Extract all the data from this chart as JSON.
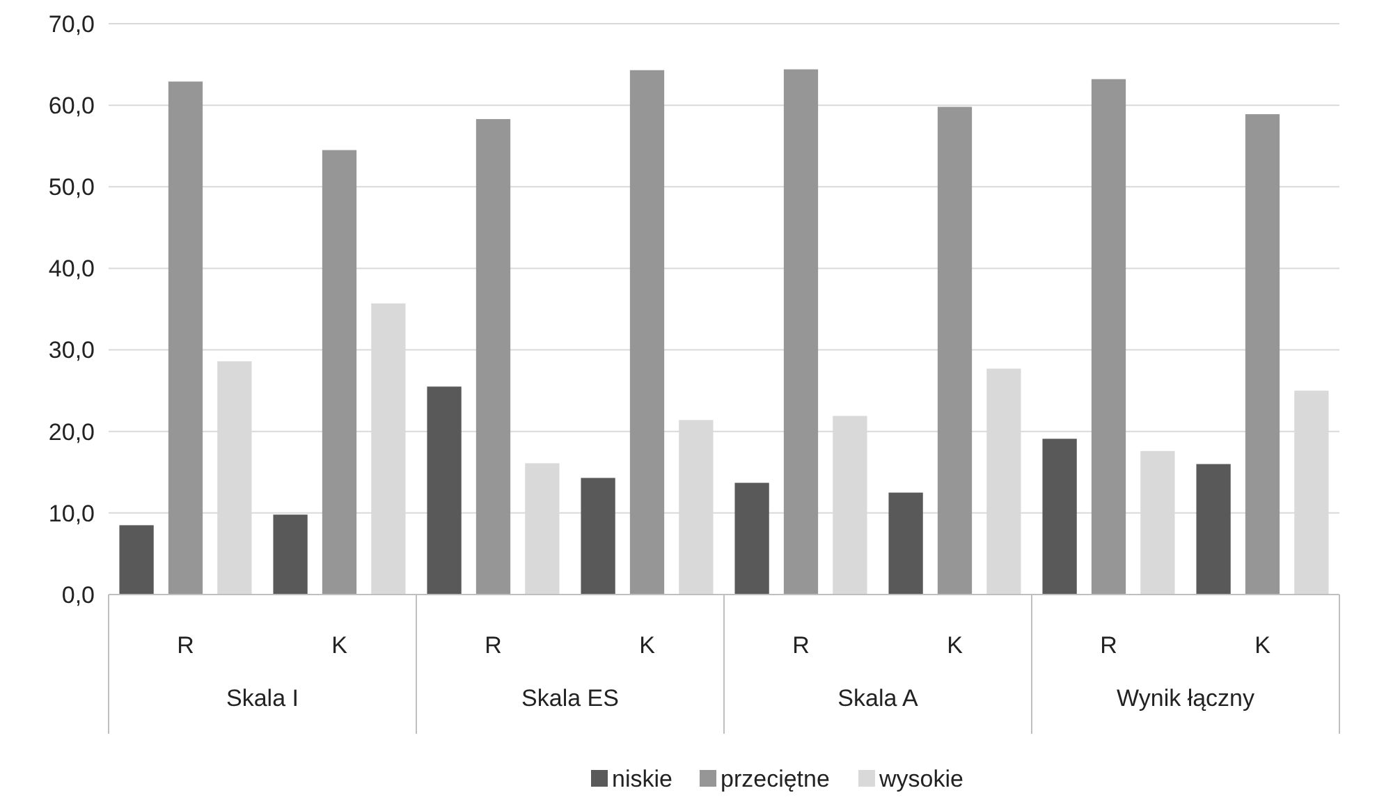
{
  "chart_data": {
    "type": "bar",
    "categories": [
      "R",
      "K",
      "R",
      "K",
      "R",
      "K",
      "R",
      "K"
    ],
    "annotations": [
      "Skala I",
      "Skala ES",
      "Skala A",
      "Wynik łączny"
    ],
    "series": [
      {
        "name": "niskie",
        "color": "#595959",
        "values": [
          8.5,
          9.8,
          25.5,
          14.3,
          13.7,
          12.5,
          19.1,
          16.0
        ]
      },
      {
        "name": "przeciętne",
        "color": "#969696",
        "values": [
          62.9,
          54.5,
          58.3,
          64.3,
          64.4,
          59.8,
          63.2,
          58.9
        ]
      },
      {
        "name": "wysokie",
        "color": "#d9d9d9",
        "values": [
          28.6,
          35.7,
          16.1,
          21.4,
          21.9,
          27.7,
          17.6,
          25.0
        ]
      }
    ],
    "ylim": [
      0,
      70
    ],
    "yticks": [
      {
        "value": 0,
        "label": "0,0"
      },
      {
        "value": 10,
        "label": "10,0"
      },
      {
        "value": 20,
        "label": "20,0"
      },
      {
        "value": 30,
        "label": "30,0"
      },
      {
        "value": 40,
        "label": "40,0"
      },
      {
        "value": 50,
        "label": "50,0"
      },
      {
        "value": 60,
        "label": "60,0"
      },
      {
        "value": 70,
        "label": "70,0"
      }
    ],
    "grid": "y",
    "legend": "bottom"
  }
}
